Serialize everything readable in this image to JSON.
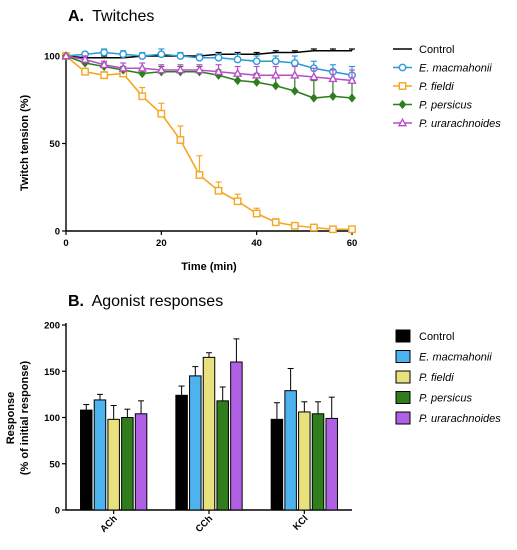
{
  "chart_data": [
    {
      "type": "line",
      "panel": "A.",
      "title": "Twitches",
      "xlabel": "Time (min)",
      "ylabel": "Twitch tension (%)",
      "xlim": [
        0,
        60
      ],
      "ylim": [
        0,
        100
      ],
      "xticks": [
        0,
        20,
        40,
        60
      ],
      "yticks": [
        0,
        50,
        100
      ],
      "legend_position": "right",
      "x": [
        0,
        4,
        8,
        12,
        16,
        20,
        24,
        28,
        32,
        36,
        40,
        44,
        48,
        52,
        56,
        60
      ],
      "series": [
        {
          "name": "Control",
          "color": "#000000",
          "marker": "none",
          "italic": false,
          "values": [
            100,
            99,
            99,
            99,
            100,
            100,
            100,
            100,
            101,
            101,
            101,
            102,
            102,
            103,
            103,
            103
          ],
          "errors": [
            0,
            1,
            1,
            1,
            1,
            1,
            1,
            1,
            1,
            1,
            1,
            1,
            1,
            1,
            1,
            1
          ]
        },
        {
          "name": "E. macmahonii",
          "color": "#2a9bd6",
          "marker": "circle",
          "italic": true,
          "values": [
            100,
            101,
            102,
            101,
            100,
            101,
            100,
            99,
            99,
            98,
            97,
            97,
            96,
            93,
            91,
            89
          ],
          "errors": [
            0,
            1,
            2,
            2,
            2,
            3,
            2,
            2,
            2,
            3,
            3,
            3,
            4,
            4,
            4,
            5
          ]
        },
        {
          "name": "P. fieldi",
          "color": "#f5a623",
          "marker": "square",
          "italic": true,
          "values": [
            100,
            91,
            89,
            90,
            77,
            67,
            52,
            32,
            23,
            17,
            10,
            5,
            3,
            2,
            1,
            1
          ],
          "errors": [
            0,
            2,
            2,
            2,
            5,
            6,
            8,
            11,
            5,
            4,
            3,
            2,
            1,
            1,
            1,
            1
          ]
        },
        {
          "name": "P. persicus",
          "color": "#2e7d1f",
          "marker": "diamond",
          "italic": true,
          "values": [
            100,
            96,
            94,
            92,
            90,
            91,
            91,
            91,
            89,
            86,
            85,
            83,
            80,
            76,
            77,
            76
          ],
          "errors": [
            0,
            2,
            2,
            2,
            2,
            3,
            3,
            3,
            3,
            4,
            5,
            6,
            8,
            10,
            10,
            10
          ]
        },
        {
          "name": "P. urarachnoides",
          "color": "#b84fc9",
          "marker": "triangle",
          "italic": true,
          "values": [
            100,
            98,
            95,
            93,
            93,
            92,
            92,
            92,
            91,
            90,
            89,
            89,
            89,
            88,
            87,
            86
          ],
          "errors": [
            0,
            2,
            2,
            3,
            3,
            3,
            3,
            3,
            4,
            4,
            5,
            5,
            5,
            5,
            5,
            6
          ]
        }
      ]
    },
    {
      "type": "bar",
      "panel": "B.",
      "title": "Agonist responses",
      "ylabel": "Response",
      "ylabel2": "(% of initial response)",
      "xlabel": "",
      "ylim": [
        0,
        200
      ],
      "yticks": [
        0,
        50,
        100,
        150,
        200
      ],
      "legend_position": "right",
      "categories": [
        "ACh",
        "CCh",
        "KCl"
      ],
      "series": [
        {
          "name": "Control",
          "color": "#000000",
          "italic": false,
          "values": [
            108,
            124,
            98
          ],
          "errors": [
            6,
            10,
            18
          ]
        },
        {
          "name": "E. macmahonii",
          "color": "#4db3ee",
          "italic": true,
          "values": [
            119,
            145,
            129
          ],
          "errors": [
            6,
            10,
            24
          ]
        },
        {
          "name": "P. fieldi",
          "color": "#e8e17d",
          "italic": true,
          "values": [
            98,
            165,
            106
          ],
          "errors": [
            15,
            5,
            11
          ]
        },
        {
          "name": "P. persicus",
          "color": "#2f7d1c",
          "italic": true,
          "values": [
            100,
            118,
            104
          ],
          "errors": [
            9,
            15,
            13
          ]
        },
        {
          "name": "P. urarachnoides",
          "color": "#b061e3",
          "italic": true,
          "values": [
            104,
            160,
            99
          ],
          "errors": [
            14,
            25,
            23
          ]
        }
      ]
    }
  ]
}
